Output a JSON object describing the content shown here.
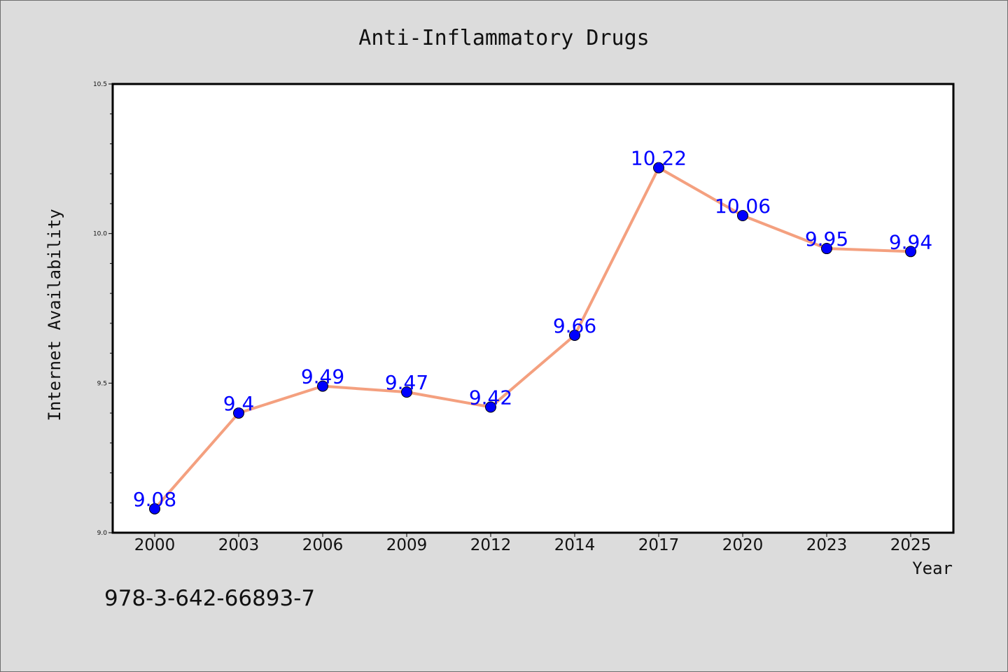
{
  "chart_data": {
    "type": "line",
    "title": "Anti-Inflammatory Drugs",
    "xlabel": "Year",
    "ylabel": "Internet Availability",
    "categories": [
      "2000",
      "2003",
      "2006",
      "2009",
      "2012",
      "2014",
      "2017",
      "2020",
      "2023",
      "2025"
    ],
    "series": [
      {
        "values": [
          9.08,
          9.4,
          9.49,
          9.47,
          9.42,
          9.66,
          10.22,
          10.06,
          9.95,
          9.94
        ],
        "data_labels": [
          "9.08",
          "9.4",
          "9.49",
          "9.47",
          "9.42",
          "9.66",
          "10.22",
          "10.06",
          "9.95",
          "9.94"
        ],
        "line_color": "#f4a07f",
        "marker_color": "#0000ff"
      }
    ],
    "ylim": [
      9.0,
      10.5
    ],
    "y_ticks": [
      "9.0",
      "9.5",
      "10.0",
      "10.5"
    ],
    "grid": false,
    "legend": "none",
    "data_label_color": "#0000ff",
    "background_color": "#dcdcdc",
    "plot_background_color": "#ffffff"
  },
  "footer": {
    "isbn": "978-3-642-66893-7"
  }
}
